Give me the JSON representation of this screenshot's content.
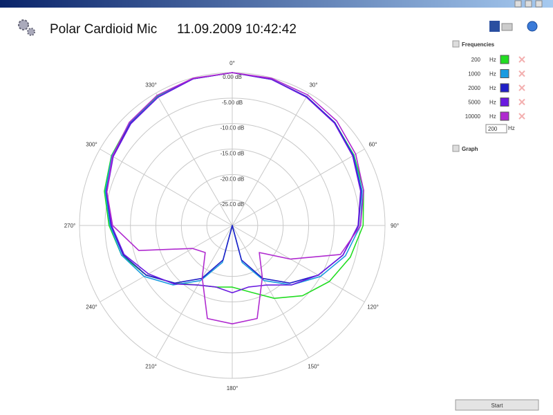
{
  "header": {
    "title": "Polar Cardioid Mic",
    "timestamp": "11.09.2009 10:42:42"
  },
  "sidebar": {
    "frequencies_label": "Frequencies",
    "unit": "Hz",
    "input_value": "200",
    "graph_label": "Graph",
    "start_button": "Start"
  },
  "chart_data": {
    "type": "polar",
    "theta": [
      0,
      15,
      30,
      45,
      60,
      75,
      90,
      105,
      120,
      135,
      150,
      165,
      180,
      195,
      210,
      225,
      240,
      255,
      270,
      285,
      300,
      315,
      330,
      345
    ],
    "rlim": [
      -30,
      0
    ],
    "rticks": [
      {
        "value": 0,
        "label": "0.00 dB"
      },
      {
        "value": -5,
        "label": "-5.00 dB"
      },
      {
        "value": -10,
        "label": "-10.00 dB"
      },
      {
        "value": -15,
        "label": "-15.00 dB"
      },
      {
        "value": -20,
        "label": "-20.00 dB"
      },
      {
        "value": -25,
        "label": "-25.00 dB"
      }
    ],
    "thetaticks": [
      {
        "value": 0,
        "label": "0°"
      },
      {
        "value": 30,
        "label": "30°"
      },
      {
        "value": 60,
        "label": "60°"
      },
      {
        "value": 90,
        "label": "90°"
      },
      {
        "value": 120,
        "label": "120°"
      },
      {
        "value": 150,
        "label": "150°"
      },
      {
        "value": 180,
        "label": "180°"
      },
      {
        "value": 210,
        "label": "210°"
      },
      {
        "value": 240,
        "label": "240°"
      },
      {
        "value": 270,
        "label": "270°"
      },
      {
        "value": 300,
        "label": "300°"
      },
      {
        "value": 330,
        "label": "330°"
      }
    ],
    "series": [
      {
        "name": "200",
        "color": "#22dd22",
        "values": [
          0,
          -0.3,
          -0.8,
          -1.5,
          -2.4,
          -3.3,
          -4.3,
          -6,
          -8,
          -10.5,
          -13.5,
          -16.5,
          -17.9,
          -17.5,
          -16.5,
          -14,
          -10.5,
          -7.5,
          -5.8,
          -4,
          -2.6,
          -1.5,
          -0.7,
          -0.2
        ]
      },
      {
        "name": "1000",
        "color": "#1a9be0",
        "values": [
          0,
          -0.3,
          -0.8,
          -1.5,
          -2.5,
          -3.6,
          -4.8,
          -7,
          -10,
          -13.5,
          -17.5,
          -22.5,
          -30,
          -22.5,
          -17.5,
          -13.5,
          -10,
          -7.5,
          -6,
          -4.2,
          -2.7,
          -1.6,
          -0.8,
          -0.2
        ]
      },
      {
        "name": "2000",
        "color": "#2020c8",
        "values": [
          0,
          -0.3,
          -0.8,
          -1.5,
          -2.6,
          -3.8,
          -5.2,
          -7.5,
          -10.5,
          -14,
          -18,
          -23,
          -30,
          -23,
          -18,
          -14,
          -10.5,
          -7.8,
          -6.2,
          -4.4,
          -2.9,
          -1.7,
          -0.9,
          -0.2
        ]
      },
      {
        "name": "5000",
        "color": "#6a1ae0",
        "values": [
          0,
          -0.3,
          -0.9,
          -1.6,
          -2.7,
          -3.9,
          -5.3,
          -7.5,
          -10.5,
          -13.5,
          -16.5,
          -17.5,
          -16.8,
          -17.5,
          -16.5,
          -13.8,
          -11,
          -8,
          -6.3,
          -4.5,
          -3,
          -1.8,
          -0.9,
          -0.2
        ]
      },
      {
        "name": "10000",
        "color": "#b02ad0",
        "values": [
          0,
          -0.1,
          -0.4,
          -1,
          -2,
          -3.3,
          -4.8,
          -8,
          -16.8,
          -22.5,
          -18.2,
          -11.1,
          -10.7,
          -11.1,
          -18.2,
          -22.5,
          -21,
          -11,
          -6.5,
          -4.5,
          -2.8,
          -1.4,
          -0.5,
          -0.1
        ]
      }
    ]
  }
}
